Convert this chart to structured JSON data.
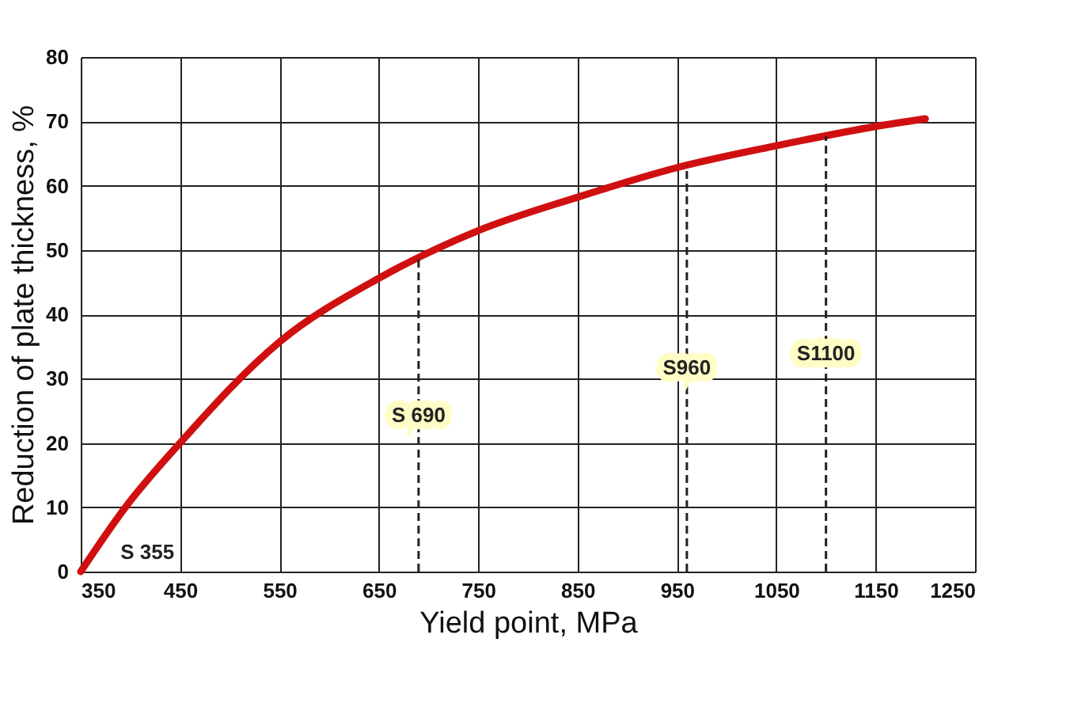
{
  "chart_data": {
    "type": "line",
    "xlabel": "Yield point, MPa",
    "ylabel": "Reduction of plate thickness, %",
    "series": [
      {
        "color": "#d01010",
        "x": [
          350,
          395,
          450,
          550,
          650,
          750,
          850,
          950,
          1050,
          1150,
          1200
        ],
        "values": [
          0,
          10,
          20,
          35.7,
          45.6,
          53,
          58.2,
          62.8,
          66.2,
          69.2,
          70.4
        ]
      }
    ],
    "xlim": [
      350,
      1250
    ],
    "xticks": [
      350,
      450,
      550,
      650,
      750,
      850,
      950,
      1050,
      1150,
      1250
    ],
    "ylim": [
      0,
      80
    ],
    "yticks": [
      0,
      10,
      20,
      30,
      40,
      50,
      60,
      70,
      80
    ],
    "grid": true,
    "line_style": "solid",
    "marker": "none",
    "ref_lines": [
      {
        "axis": "x",
        "value": 690,
        "label": "S 690",
        "line_style": "dashed",
        "color": "#222222"
      },
      {
        "axis": "x",
        "value": 960,
        "label": "S960",
        "line_style": "dashed",
        "color": "#222222"
      },
      {
        "axis": "x",
        "value": 1100,
        "label": "S1100",
        "line_style": "dashed",
        "color": "#222222"
      }
    ],
    "annotations": [
      {
        "text": "S 355",
        "x": 355,
        "y": 0
      }
    ]
  }
}
